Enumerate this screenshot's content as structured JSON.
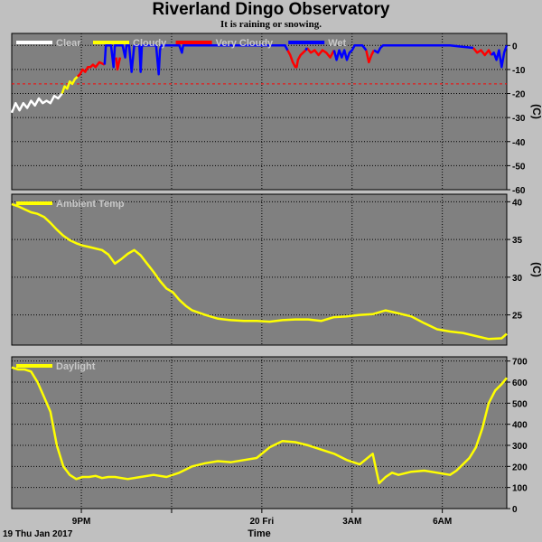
{
  "title": "Riverland Dingo Observatory",
  "subtitle": "It is raining or snowing.",
  "colors": {
    "background": "#c0c0c0",
    "plot_background": "#808080",
    "grid": "#000000",
    "clear": "#ffffff",
    "cloudy": "#ffff00",
    "very_cloudy": "#ff0000",
    "wet": "#0000ff",
    "threshold": "#ff0000"
  },
  "chart_data": [
    {
      "type": "line",
      "name": "sky-temperature",
      "legend": [
        "Clear",
        "Cloudy",
        "Very Cloudy",
        "Wet"
      ],
      "legend_placement": "top-left",
      "unit_label": "(C)",
      "ylim": [
        -60,
        5
      ],
      "yticks": [
        0,
        -10,
        -20,
        -30,
        -40,
        -50,
        -60
      ],
      "threshold": -16,
      "grid": true,
      "series": [
        {
          "name": "Clear",
          "color": "#ffffff",
          "x": [
            0,
            0.15,
            0.3,
            0.45,
            0.6,
            0.75,
            0.9,
            1.05,
            1.2,
            1.35,
            1.5,
            1.65,
            1.8,
            1.95
          ],
          "y": [
            -28,
            -24,
            -27,
            -24,
            -26,
            -23,
            -25,
            -22,
            -24,
            -23,
            -24,
            -21,
            -22,
            -20
          ]
        },
        {
          "name": "Cloudy",
          "color": "#ffff00",
          "x": [
            1.95,
            2.05,
            2.15,
            2.25,
            2.35,
            2.45,
            2.55
          ],
          "y": [
            -20,
            -17,
            -18,
            -15,
            -16,
            -14,
            -13
          ]
        },
        {
          "name": "Very Cloudy",
          "color": "#ff0000",
          "x": [
            2.55,
            2.65,
            2.75,
            2.85,
            2.95,
            3.05,
            3.15,
            3.25,
            3.4,
            3.6
          ],
          "y": [
            -13,
            -12,
            -10,
            -11,
            -9,
            -9,
            -8,
            -9,
            -7,
            -8
          ]
        },
        {
          "name": "Very Cloudy",
          "color": "#ff0000",
          "x": [
            4.05,
            4.1,
            4.2
          ],
          "y": [
            -5,
            -10,
            -5
          ]
        },
        {
          "name": "Very Cloudy",
          "color": "#ff0000",
          "x": [
            10.7,
            10.8,
            10.9,
            11.0,
            11.05,
            11.1,
            11.2,
            11.3,
            11.4
          ],
          "y": [
            -2,
            -4,
            -7,
            -9,
            -9,
            -6,
            -4,
            -3,
            -2
          ]
        },
        {
          "name": "Very Cloudy",
          "color": "#ff0000",
          "x": [
            11.45,
            11.6,
            11.75,
            11.9,
            12.05,
            12.2,
            12.35,
            12.5
          ],
          "y": [
            -1,
            -3,
            -2,
            -4,
            -2,
            -3,
            -5,
            -2
          ]
        },
        {
          "name": "Very Cloudy",
          "color": "#ff0000",
          "x": [
            13.75,
            13.85,
            13.95,
            14.05
          ],
          "y": [
            -2,
            -7,
            -4,
            -2
          ]
        },
        {
          "name": "Very Cloudy",
          "color": "#ff0000",
          "x": [
            17.9,
            18.05,
            18.2,
            18.35,
            18.5,
            18.6
          ],
          "y": [
            -1,
            -3,
            -2,
            -4,
            -2,
            -4
          ]
        },
        {
          "name": "Wet",
          "color": "#0000ff",
          "x": [
            3.6,
            3.65,
            3.75,
            3.85,
            3.95,
            4.0,
            4.3,
            4.4,
            4.45,
            4.55,
            4.65,
            4.75,
            4.85,
            4.95,
            5.0,
            5.05,
            5.15,
            5.3,
            5.45,
            5.6,
            5.7,
            5.75,
            5.8,
            5.9,
            6.5,
            6.6,
            6.65,
            6.7,
            8.5,
            10.6,
            10.7
          ],
          "y": [
            -8,
            0,
            0,
            0,
            -9,
            0,
            0,
            -5,
            0,
            0,
            -11,
            0,
            0,
            0,
            -11,
            0,
            0,
            0,
            0,
            0,
            -12,
            -2,
            0,
            0,
            0,
            -3,
            0,
            0,
            0,
            0,
            -2
          ]
        },
        {
          "name": "Wet",
          "color": "#0000ff",
          "x": [
            11.4,
            11.45
          ],
          "y": [
            -2,
            -1
          ]
        },
        {
          "name": "Wet",
          "color": "#0000ff",
          "x": [
            12.5,
            12.6,
            12.7,
            12.8,
            12.9,
            13.0,
            13.1,
            13.2,
            13.3,
            13.4,
            13.5,
            13.6,
            13.75
          ],
          "y": [
            -2,
            -6,
            -2,
            -5,
            -2,
            -6,
            -3,
            -2,
            0,
            0,
            0,
            0,
            -2
          ]
        },
        {
          "name": "Wet",
          "color": "#0000ff",
          "x": [
            14.05,
            14.2,
            14.3,
            14.4,
            14.6,
            15.0,
            16.0,
            17.0,
            17.9
          ],
          "y": [
            -2,
            -3,
            -1,
            0,
            0,
            0,
            0,
            0,
            -1
          ]
        },
        {
          "name": "Wet",
          "color": "#0000ff",
          "x": [
            18.6,
            18.7,
            18.8,
            18.9,
            19.0,
            19.1,
            19.2
          ],
          "y": [
            -4,
            -3,
            -6,
            -2,
            -9,
            -3,
            0
          ]
        }
      ]
    },
    {
      "type": "line",
      "name": "ambient-temperature",
      "legend": [
        "Ambient Temp"
      ],
      "legend_placement": "top-left",
      "unit_label": "(C)",
      "ylim": [
        21,
        41
      ],
      "yticks": [
        40,
        35,
        30,
        25
      ],
      "grid": true,
      "series": [
        {
          "name": "Ambient Temp",
          "color": "#ffff00",
          "x": [
            0,
            0.25,
            0.5,
            0.75,
            1.0,
            1.25,
            1.5,
            1.75,
            2.0,
            2.25,
            2.5,
            2.75,
            3.0,
            3.25,
            3.5,
            3.75,
            4.0,
            4.25,
            4.5,
            4.75,
            5.0,
            5.25,
            5.5,
            5.75,
            6.0,
            6.25,
            6.5,
            6.75,
            7.0,
            7.5,
            8.0,
            8.5,
            9.0,
            9.5,
            10.0,
            10.5,
            11.0,
            11.5,
            12.0,
            12.5,
            13.0,
            13.5,
            14.0,
            14.5,
            15.0,
            15.5,
            16.0,
            16.5,
            17.0,
            17.5,
            18.0,
            18.5,
            19.0,
            19.2
          ],
          "y": [
            39.7,
            39.4,
            39.0,
            38.6,
            38.4,
            38.0,
            37.2,
            36.3,
            35.5,
            34.9,
            34.5,
            34.2,
            34.0,
            33.8,
            33.6,
            33.0,
            31.8,
            32.4,
            33.1,
            33.6,
            32.9,
            31.8,
            30.7,
            29.5,
            28.5,
            28.0,
            27.0,
            26.2,
            25.6,
            25.0,
            24.5,
            24.3,
            24.2,
            24.2,
            24.1,
            24.3,
            24.4,
            24.4,
            24.2,
            24.7,
            24.8,
            25.0,
            25.1,
            25.6,
            25.2,
            24.8,
            23.9,
            23.1,
            22.8,
            22.6,
            22.2,
            21.8,
            21.9,
            22.5
          ]
        }
      ]
    },
    {
      "type": "line",
      "name": "daylight",
      "legend": [
        "Daylight"
      ],
      "legend_placement": "top-left",
      "ylim": [
        0,
        720
      ],
      "yticks": [
        700,
        600,
        500,
        400,
        300,
        200,
        100,
        0
      ],
      "grid": true,
      "series": [
        {
          "name": "Daylight",
          "color": "#ffff00",
          "x": [
            0,
            0.25,
            0.5,
            0.75,
            1.0,
            1.25,
            1.5,
            1.75,
            2.0,
            2.25,
            2.5,
            2.75,
            3.0,
            3.25,
            3.5,
            3.75,
            4.0,
            4.5,
            5.0,
            5.5,
            6.0,
            6.5,
            7.0,
            7.5,
            8.0,
            8.5,
            9.0,
            9.5,
            10.0,
            10.5,
            11.0,
            11.5,
            12.0,
            12.5,
            13.0,
            13.5,
            14.0,
            14.25,
            14.5,
            14.75,
            15.0,
            15.5,
            16.0,
            16.5,
            17.0,
            17.25,
            17.5,
            17.75,
            18.0,
            18.25,
            18.5,
            18.75,
            19.0,
            19.2
          ],
          "y": [
            670,
            660,
            660,
            650,
            600,
            530,
            460,
            300,
            200,
            160,
            140,
            150,
            150,
            155,
            145,
            150,
            150,
            140,
            150,
            160,
            150,
            170,
            200,
            215,
            225,
            220,
            230,
            240,
            290,
            320,
            315,
            300,
            280,
            260,
            230,
            210,
            260,
            120,
            150,
            170,
            160,
            175,
            180,
            170,
            160,
            180,
            210,
            240,
            290,
            380,
            500,
            560,
            590,
            620
          ]
        }
      ]
    }
  ],
  "x_axis": {
    "xlim": [
      0,
      19.2
    ],
    "ticks": [
      {
        "x": 2.7,
        "label": "9PM"
      },
      {
        "x": 6.2,
        "label": ""
      },
      {
        "x": 9.7,
        "label": "20 Fri"
      },
      {
        "x": 13.2,
        "label": "3AM"
      },
      {
        "x": 16.7,
        "label": "6AM"
      }
    ],
    "start_label": "19 Thu Jan 2017",
    "xlabel": "Time"
  }
}
